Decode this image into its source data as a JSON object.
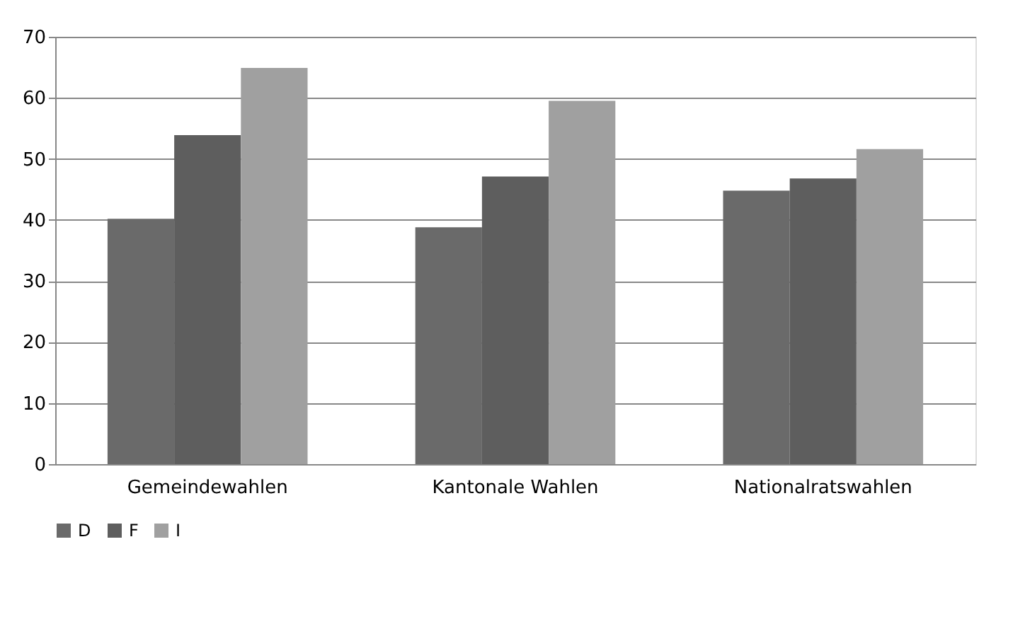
{
  "chart_data": {
    "type": "bar",
    "categories": [
      "Gemeindewahlen",
      "Kantonale Wahlen",
      "Nationalratswahlen"
    ],
    "series": [
      {
        "name": "D",
        "color": "#6a6a6a",
        "values": [
          40.2,
          38.8,
          44.8
        ]
      },
      {
        "name": "F",
        "color": "#5e5e5e",
        "values": [
          53.9,
          47.1,
          46.8
        ]
      },
      {
        "name": "I",
        "color": "#a0a0a0",
        "values": [
          64.9,
          59.5,
          51.6
        ]
      }
    ],
    "ylim": [
      0,
      70
    ],
    "yticks": [
      0,
      10,
      20,
      30,
      40,
      50,
      60,
      70
    ],
    "grid": "y",
    "legend": "bottom"
  }
}
